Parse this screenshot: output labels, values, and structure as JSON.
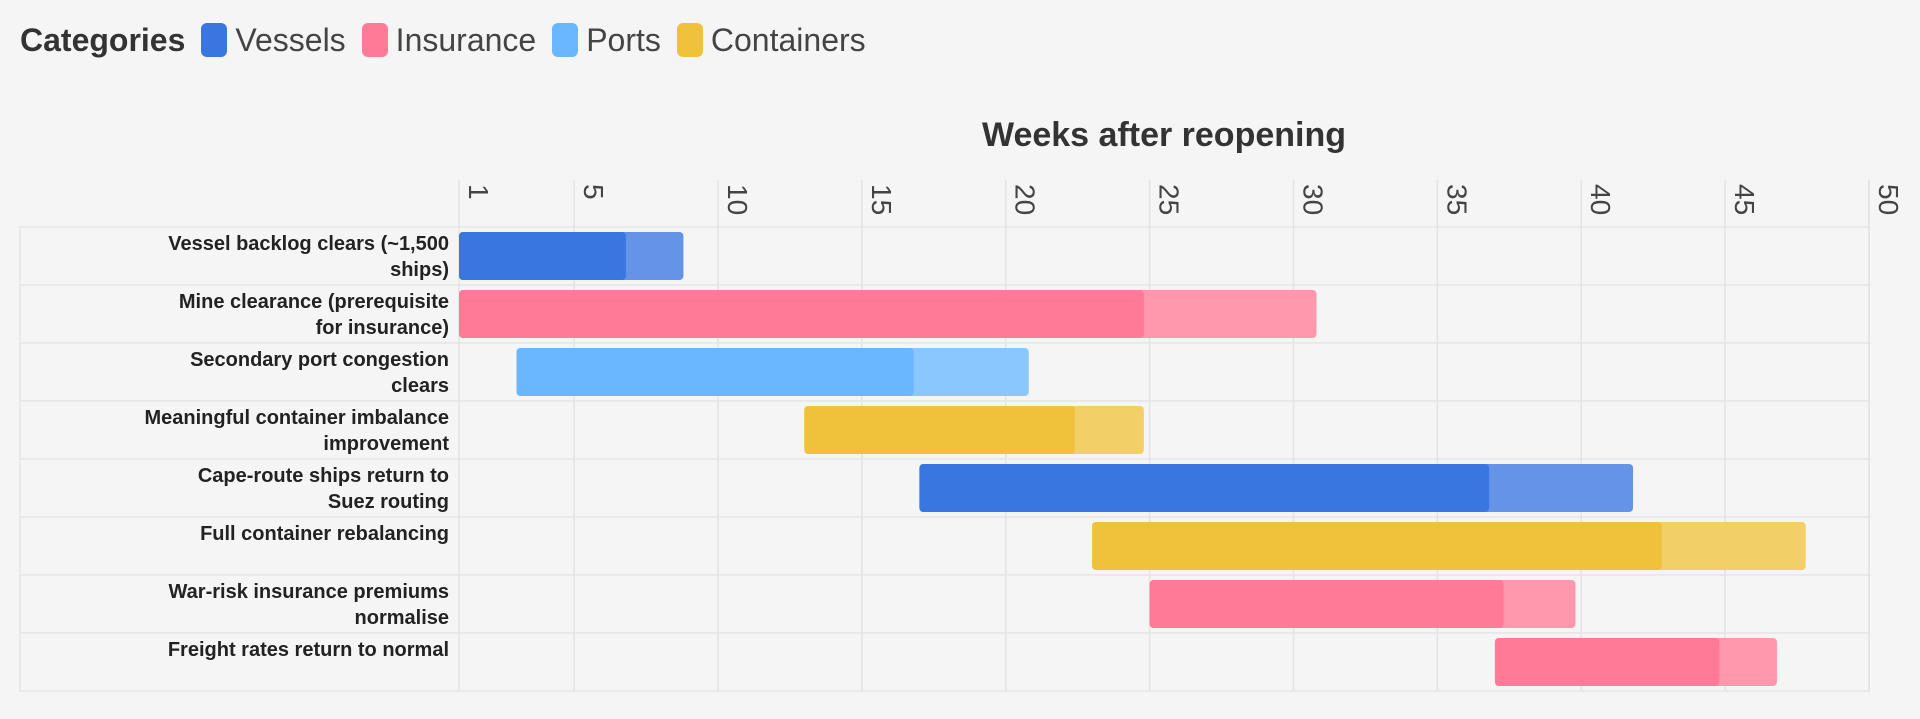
{
  "legend": {
    "title": "Categories",
    "items": [
      {
        "key": "vessels",
        "label": "Vessels",
        "color": "#3a76e0"
      },
      {
        "key": "insurance",
        "label": "Insurance",
        "color": "#ff7a96"
      },
      {
        "key": "ports",
        "label": "Ports",
        "color": "#6ab7ff"
      },
      {
        "key": "containers",
        "label": "Containers",
        "color": "#f0c23c"
      }
    ]
  },
  "chart_data": {
    "type": "gantt",
    "title": "Weeks after reopening",
    "xlim": [
      1,
      50
    ],
    "x_ticks": [
      1,
      5,
      10,
      15,
      20,
      25,
      30,
      35,
      40,
      45,
      50
    ],
    "grid": true,
    "legend_position": "top-left",
    "tasks": [
      {
        "label": "Vessel backlog clears (~1,500 ships)",
        "category": "vessels",
        "start": 1,
        "end": 6.8,
        "end_max": 8.8
      },
      {
        "label": "Mine clearance (prerequisite for insurance)",
        "category": "insurance",
        "start": 1,
        "end": 24.8,
        "end_max": 30.8
      },
      {
        "label": "Secondary port congestion clears",
        "category": "ports",
        "start": 3,
        "end": 16.8,
        "end_max": 20.8
      },
      {
        "label": "Meaningful container imbalance improvement",
        "category": "containers",
        "start": 13,
        "end": 22.4,
        "end_max": 24.8
      },
      {
        "label": "Cape-route ships return to Suez routing",
        "category": "vessels",
        "start": 17,
        "end": 36.8,
        "end_max": 41.8
      },
      {
        "label": "Full container rebalancing",
        "category": "containers",
        "start": 23,
        "end": 42.8,
        "end_max": 47.8
      },
      {
        "label": "War-risk insurance premiums normalise",
        "category": "insurance",
        "start": 25,
        "end": 37.3,
        "end_max": 39.8
      },
      {
        "label": "Freight rates return to normal",
        "category": "insurance",
        "start": 37,
        "end": 44.8,
        "end_max": 46.8
      }
    ]
  }
}
